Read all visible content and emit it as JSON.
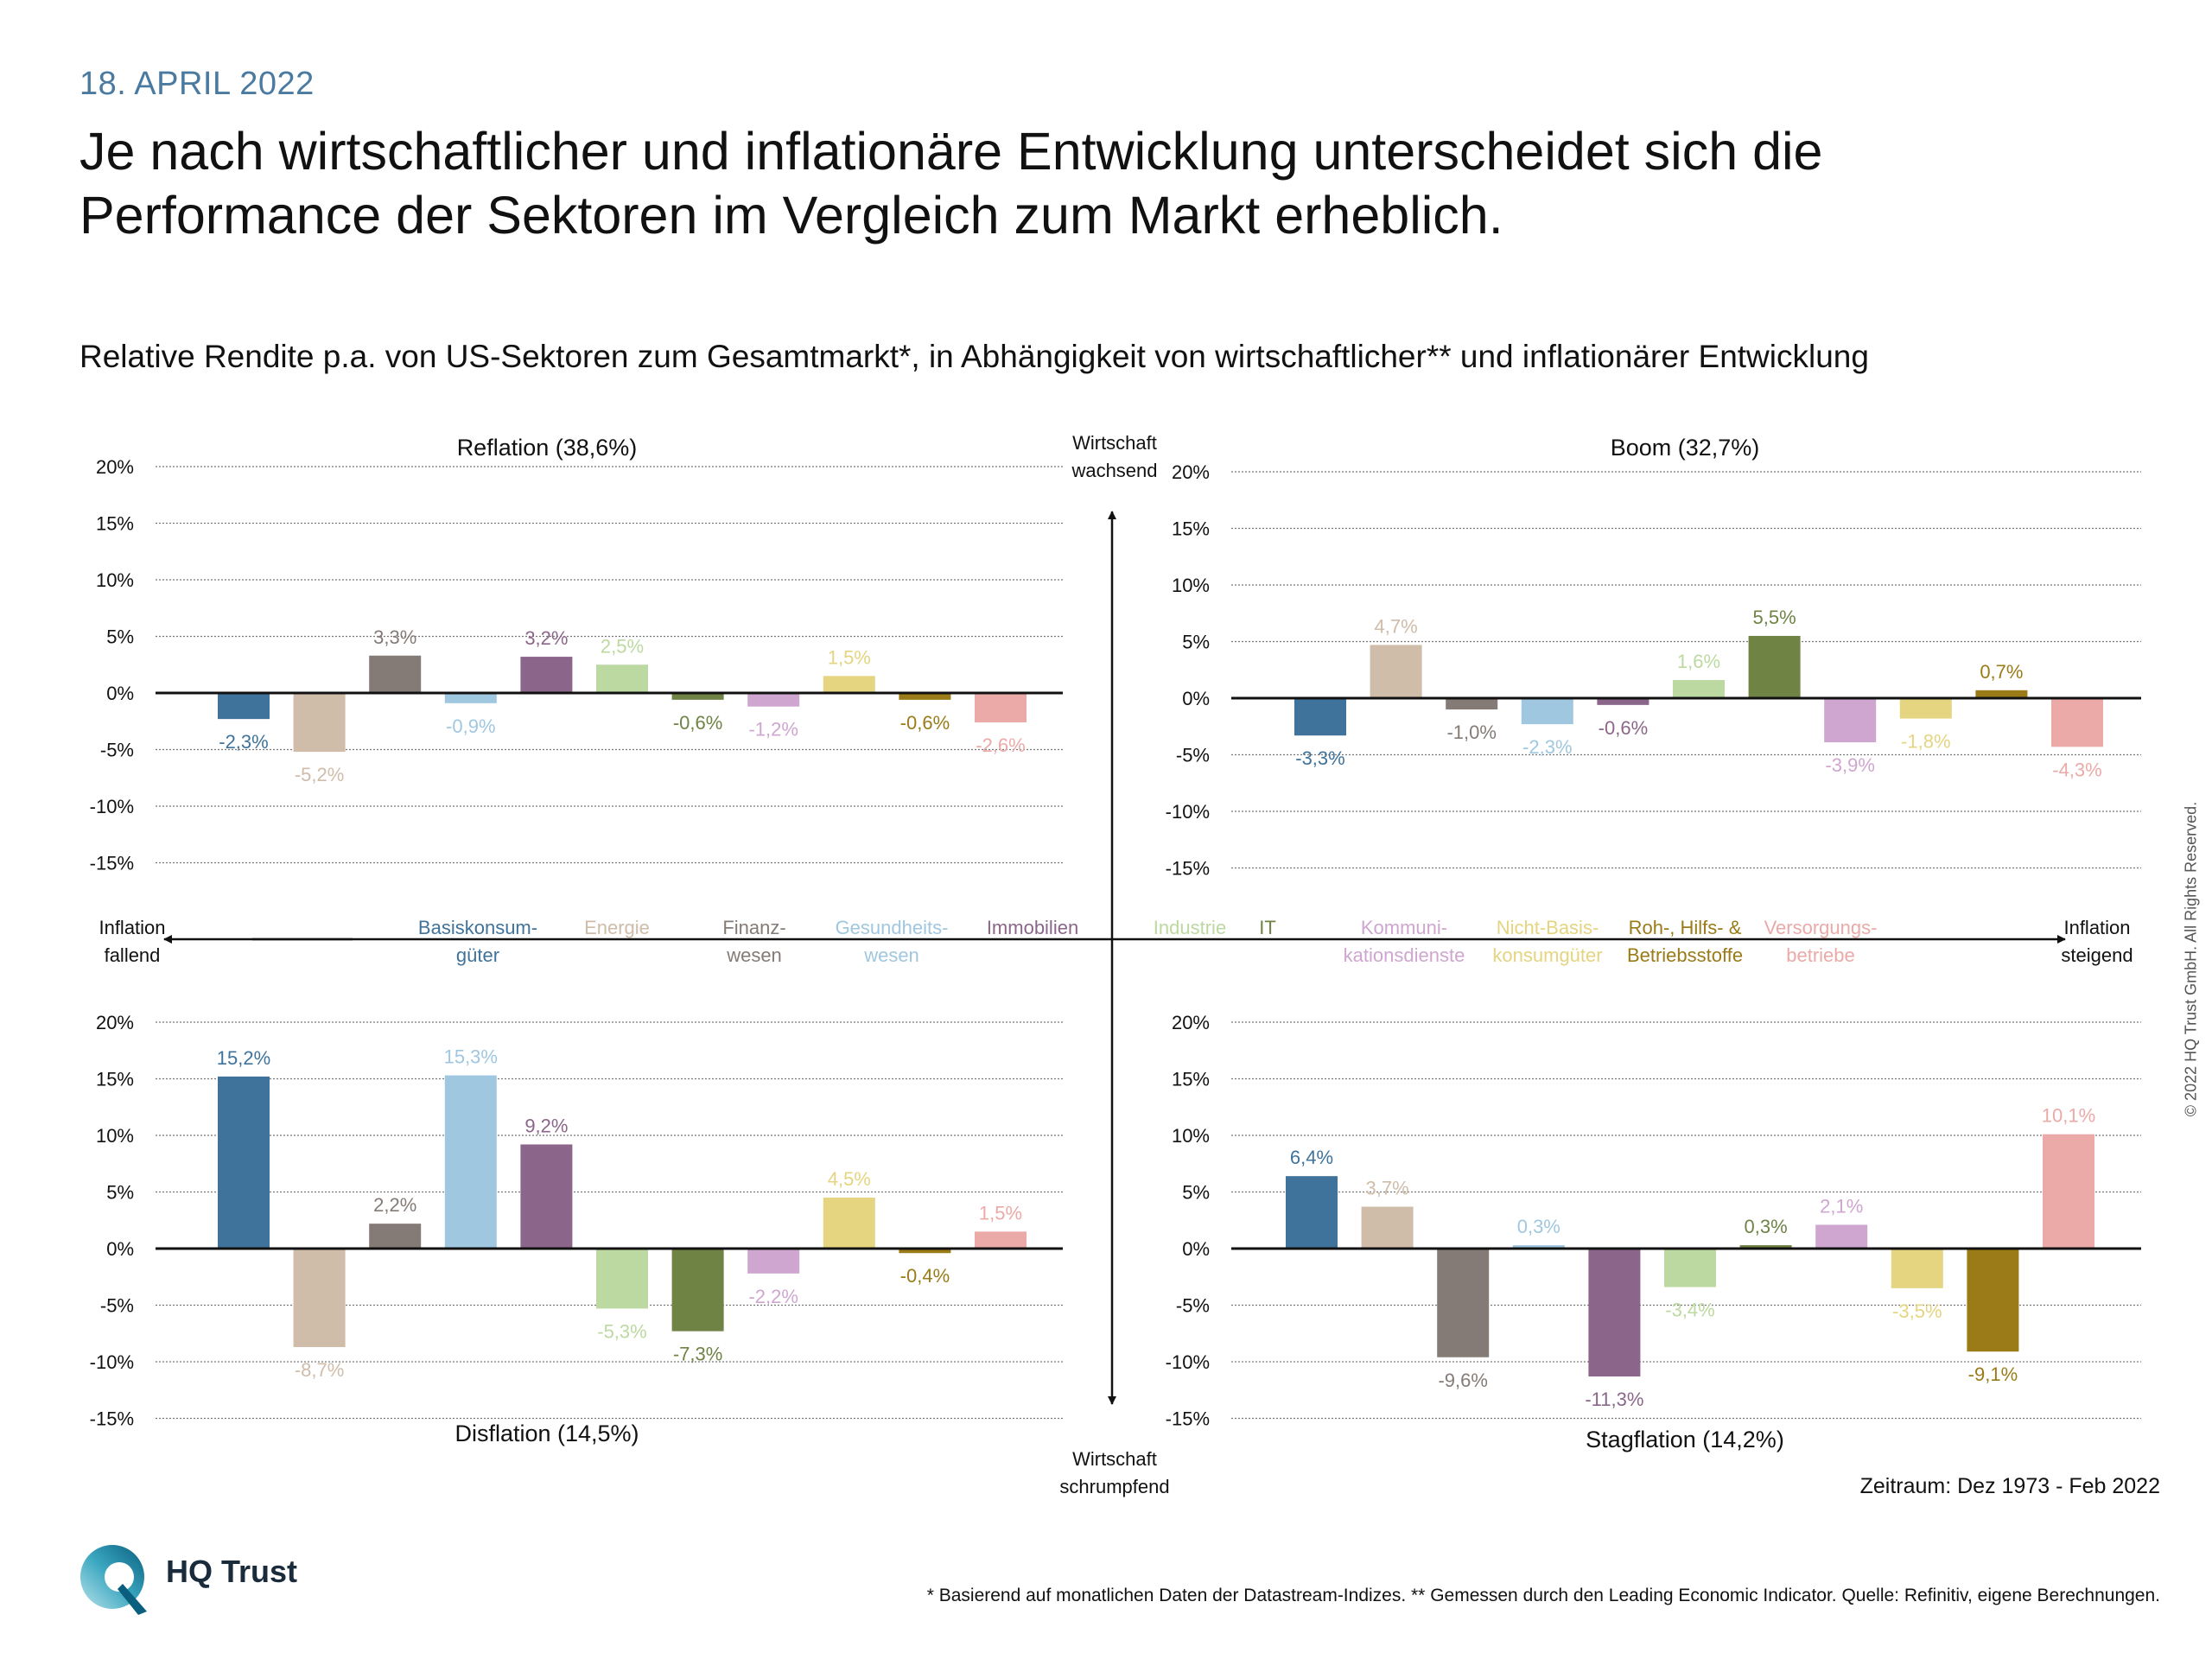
{
  "header": {
    "date": "18. APRIL 2022",
    "title": "Je nach wirtschaftlicher und inflationäre Entwicklung unterscheidet sich die Performance der Sektoren im Vergleich zum Markt erheblich.",
    "subtitle": "Relative Rendite p.a. von US-Sektoren zum Gesamtmarkt*, in Abhängigkeit von wirtschaftlicher** und inflationärer Entwicklung"
  },
  "axes": {
    "top": [
      "Wirtschaft",
      "wachsend"
    ],
    "bottom": [
      "Wirtschaft",
      "schrumpfend"
    ],
    "left": [
      "Inflation",
      "fallend"
    ],
    "right": [
      "Inflation",
      "steigend"
    ]
  },
  "chart_data": [
    {
      "type": "bar",
      "title": "Reflation (38,6%)",
      "quadrant": "top-left",
      "ylim": [
        -15,
        20
      ],
      "yticks": [
        "20%",
        "15%",
        "10%",
        "5%",
        "0%",
        "-5%",
        "-10%",
        "-15%"
      ],
      "values": [
        -2.3,
        -5.2,
        3.3,
        -0.9,
        3.2,
        2.5,
        -0.6,
        -1.2,
        1.5,
        -0.6,
        -2.6
      ],
      "labels": [
        "-2,3%",
        "-5,2%",
        "3,3%",
        "-0,9%",
        "3,2%",
        "2,5%",
        "-0,6%",
        "-1,2%",
        "1,5%",
        "-0,6%",
        "-2,6%"
      ]
    },
    {
      "type": "bar",
      "title": "Boom (32,7%)",
      "quadrant": "top-right",
      "ylim": [
        -15,
        20
      ],
      "yticks": [
        "20%",
        "15%",
        "10%",
        "5%",
        "0%",
        "-5%",
        "-10%",
        "-15%"
      ],
      "values": [
        -3.3,
        4.7,
        -1.0,
        -2.3,
        -0.6,
        1.6,
        5.5,
        -3.9,
        -1.8,
        0.7,
        -4.3
      ],
      "labels": [
        "-3,3%",
        "4,7%",
        "-1,0%",
        "-2,3%",
        "-0,6%",
        "1,6%",
        "5,5%",
        "-3,9%",
        "-1,8%",
        "0,7%",
        "-4,3%"
      ]
    },
    {
      "type": "bar",
      "title": "Disflation (14,5%)",
      "quadrant": "bottom-left",
      "ylim": [
        -15,
        20
      ],
      "yticks": [
        "20%",
        "15%",
        "10%",
        "5%",
        "0%",
        "-5%",
        "-10%",
        "-15%"
      ],
      "values": [
        15.2,
        -8.7,
        2.2,
        15.3,
        9.2,
        -5.3,
        -7.3,
        -2.2,
        4.5,
        -0.4,
        1.5
      ],
      "labels": [
        "15,2%",
        "-8,7%",
        "2,2%",
        "15,3%",
        "9,2%",
        "-5,3%",
        "-7,3%",
        "-2,2%",
        "4,5%",
        "-0,4%",
        "1,5%"
      ]
    },
    {
      "type": "bar",
      "title": "Stagflation (14,2%)",
      "quadrant": "bottom-right",
      "ylim": [
        -15,
        20
      ],
      "yticks": [
        "20%",
        "15%",
        "10%",
        "5%",
        "0%",
        "-5%",
        "-10%",
        "-15%"
      ],
      "values": [
        6.4,
        3.7,
        -9.6,
        0.3,
        -11.3,
        -3.4,
        0.3,
        2.1,
        -3.5,
        -9.1,
        10.1
      ],
      "labels": [
        "6,4%",
        "3,7%",
        "-9,6%",
        "0,3%",
        "-11,3%",
        "-3,4%",
        "0,3%",
        "2,1%",
        "-3,5%",
        "-9,1%",
        "10,1%"
      ]
    }
  ],
  "sectors": [
    {
      "name": [
        "Basiskonsum-",
        "güter"
      ],
      "color": "#3f739b"
    },
    {
      "name": [
        "Energie"
      ],
      "color": "#cfbca9"
    },
    {
      "name": [
        "Finanz-",
        "wesen"
      ],
      "color": "#857b76"
    },
    {
      "name": [
        "Gesundheits-",
        "wesen"
      ],
      "color": "#a0c7e0"
    },
    {
      "name": [
        "Immobilien"
      ],
      "color": "#8b668a"
    },
    {
      "name": [
        "Industrie"
      ],
      "color": "#bcd9a1"
    },
    {
      "name": [
        "IT"
      ],
      "color": "#6f8345"
    },
    {
      "name": [
        "Kommuni-",
        "kationsdienste"
      ],
      "color": "#cfa6d0"
    },
    {
      "name": [
        "Nicht-Basis-",
        "konsumgüter"
      ],
      "color": "#e5d480"
    },
    {
      "name": [
        "Roh-, Hilfs- &",
        "Betriebsstoffe"
      ],
      "color": "#9a7b18"
    },
    {
      "name": [
        "Versorgungs-",
        "betriebe"
      ],
      "color": "#ebaaa8"
    }
  ],
  "period": "Zeitraum: Dez 1973 - Feb 2022",
  "footnote": "* Basierend auf monatlichen Daten der Datastream-Indizes. ** Gemessen durch den Leading Economic Indicator. Quelle: Refinitiv, eigene Berechnungen.",
  "copyright": "© 2022 HQ Trust GmbH. All Rights Reserved.",
  "logo": {
    "name": "HQ Trust",
    "colors": [
      "#0a6e8c",
      "#4bb7c9"
    ]
  }
}
